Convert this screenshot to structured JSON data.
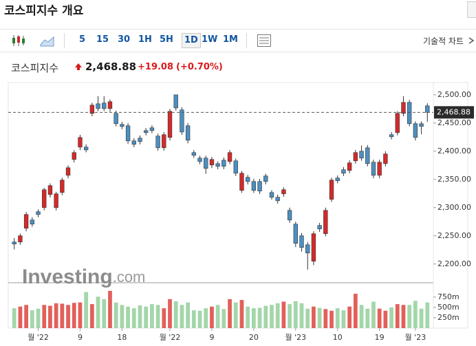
{
  "header": {
    "title": "코스피지수 개요"
  },
  "toolbar": {
    "intervals": [
      "5",
      "15",
      "30",
      "1H",
      "5H",
      "1D",
      "1W",
      "1M"
    ],
    "active_index": 5,
    "technical": "기술적 차트"
  },
  "quote": {
    "name": "코스피지수",
    "price": "2,468.88",
    "change": "+19.08",
    "change_pct": "(+0.70%)"
  },
  "chart_data": {
    "type": "candlestick",
    "open": [
      2239.0,
      2239.0,
      2263.4,
      2278.0,
      2292.7,
      2300.0,
      2323.2,
      2300.0,
      2326.8,
      2357.3,
      2385.4,
      2407.3,
      2407.3,
      2467.1,
      2484.1,
      2485.4,
      2475.6,
      2467.1,
      2447.6,
      2445.1,
      2418.3,
      2423.2,
      2436.6,
      2441.5,
      2426.8,
      2406.1,
      2424.4,
      2500.0,
      2473.2,
      2445.1,
      2397.6,
      2387.8,
      2387.8,
      2375.6,
      2378.0,
      2384.1,
      2381.7,
      2382.9,
      2330.5,
      2353.7,
      2346.3,
      2346.3,
      2356.1,
      2326.8,
      2318.3,
      2324.4,
      2295.1,
      2270.7,
      2250.0,
      2234.1,
      2204.9,
      2268.3,
      2253.7,
      2314.6,
      2352.4,
      2367.1,
      2365.9,
      2382.9,
      2400.0,
      2406.1,
      2380.5,
      2357.3,
      2378.0,
      2429.3,
      2432.9,
      2467.1,
      2486.6,
      2448.8,
      2448.8,
      2480.5
    ],
    "high": [
      2246.0,
      2254.0,
      2292.0,
      2283.0,
      2297.0,
      2335.0,
      2343.0,
      2328.0,
      2353.0,
      2375.0,
      2402.0,
      2429.0,
      2412.0,
      2486.0,
      2497.6,
      2497.6,
      2492.0,
      2472.0,
      2452.0,
      2450.0,
      2423.0,
      2428.0,
      2441.0,
      2446.0,
      2431.0,
      2434.0,
      2475.0,
      2500.0,
      2478.0,
      2450.0,
      2402.0,
      2392.0,
      2392.0,
      2390.0,
      2382.0,
      2389.0,
      2402.0,
      2387.0,
      2365.0,
      2358.0,
      2351.0,
      2351.0,
      2360.0,
      2331.0,
      2323.0,
      2336.0,
      2300.0,
      2275.0,
      2255.0,
      2239.0,
      2258.0,
      2273.0,
      2300.0,
      2353.0,
      2357.0,
      2372.0,
      2384.0,
      2402.0,
      2410.0,
      2411.0,
      2385.0,
      2385.0,
      2400.0,
      2434.0,
      2471.0,
      2497.6,
      2491.0,
      2453.0,
      2453.0,
      2485.0
    ],
    "low": [
      2226.0,
      2234.0,
      2258.0,
      2266.0,
      2283.0,
      2295.0,
      2318.0,
      2295.0,
      2322.0,
      2352.0,
      2380.0,
      2402.0,
      2398.0,
      2462.0,
      2471.0,
      2471.0,
      2470.0,
      2444.0,
      2439.0,
      2413.0,
      2407.0,
      2412.0,
      2428.0,
      2432.0,
      2401.0,
      2401.0,
      2419.0,
      2472.0,
      2429.0,
      2414.0,
      2388.0,
      2377.0,
      2360.0,
      2370.0,
      2368.0,
      2368.0,
      2377.0,
      2356.0,
      2326.0,
      2341.0,
      2326.0,
      2324.0,
      2341.0,
      2314.0,
      2307.0,
      2319.0,
      2273.0,
      2230.0,
      2222.0,
      2190.0,
      2198.0,
      2257.0,
      2249.0,
      2310.0,
      2343.0,
      2356.0,
      2361.0,
      2378.0,
      2383.0,
      2373.0,
      2352.0,
      2352.0,
      2373.0,
      2421.0,
      2428.0,
      2462.0,
      2444.0,
      2419.0,
      2430.0,
      2452.0
    ],
    "close": [
      2235.4,
      2250.0,
      2287.8,
      2270.7,
      2287.8,
      2331.7,
      2339.0,
      2324.4,
      2348.8,
      2370.7,
      2397.6,
      2424.4,
      2402.4,
      2481.7,
      2475.6,
      2475.6,
      2487.8,
      2448.8,
      2443.9,
      2418.3,
      2412.2,
      2417.1,
      2432.9,
      2436.6,
      2406.1,
      2429.3,
      2470.7,
      2476.8,
      2434.1,
      2419.5,
      2392.7,
      2381.7,
      2369.5,
      2385.4,
      2373.2,
      2373.2,
      2397.6,
      2361.0,
      2361.0,
      2346.3,
      2330.5,
      2329.3,
      2346.3,
      2318.3,
      2312.2,
      2331.7,
      2278.0,
      2236.6,
      2229.3,
      2219.5,
      2253.7,
      2262.2,
      2295.1,
      2348.8,
      2347.6,
      2361.0,
      2379.3,
      2397.6,
      2387.8,
      2378.0,
      2357.3,
      2380.5,
      2395.1,
      2425.6,
      2467.1,
      2486.6,
      2448.8,
      2424.4,
      2443.9,
      2468.88
    ],
    "up_color": "#d42a2a",
    "down_color": "#4d8fc0",
    "xlim": [
      -1,
      70
    ],
    "xticks": [
      {
        "value": 4,
        "label": "월 '22"
      },
      {
        "value": 11,
        "label": "9"
      },
      {
        "value": 18,
        "label": "18"
      },
      {
        "value": 26,
        "label": "월 '22"
      },
      {
        "value": 33,
        "label": "9"
      },
      {
        "value": 40,
        "label": "20"
      },
      {
        "value": 47,
        "label": "월 '23"
      },
      {
        "value": 54,
        "label": "10"
      },
      {
        "value": 61,
        "label": "19"
      },
      {
        "value": 67,
        "label": "월 '23"
      }
    ],
    "ylim": [
      2168,
      2512
    ],
    "yticks": [
      {
        "value": 2200,
        "label": "2,200.00"
      },
      {
        "value": 2250,
        "label": "2,250.00"
      },
      {
        "value": 2300,
        "label": "2,300.00"
      },
      {
        "value": 2350,
        "label": "2,350.00"
      },
      {
        "value": 2400,
        "label": "2,400.00"
      },
      {
        "value": 2450,
        "label": "2,450.00"
      },
      {
        "value": 2500,
        "label": "2,500.00"
      }
    ],
    "last_price": {
      "value": 2468.88,
      "label": "2,468.88"
    },
    "watermark": {
      "brand": "Investing",
      "suffix": ".com"
    },
    "volume": {
      "values": [
        480,
        520,
        560,
        430,
        470,
        560,
        540,
        600,
        590,
        560,
        610,
        620,
        870,
        580,
        760,
        700,
        900,
        620,
        560,
        520,
        480,
        550,
        520,
        580,
        560,
        480,
        700,
        650,
        560,
        620,
        430,
        420,
        480,
        520,
        560,
        460,
        700,
        620,
        680,
        520,
        480,
        490,
        540,
        560,
        600,
        640,
        580,
        650,
        600,
        470,
        520,
        490,
        460,
        420,
        480,
        430,
        520,
        830,
        560,
        470,
        640,
        470,
        420,
        500,
        580,
        560,
        560,
        660,
        470,
        620
      ],
      "up_color": "#e2605b",
      "down_color": "#a3d6a9",
      "ylim": [
        0,
        1080
      ],
      "yticks": [
        {
          "value": 250,
          "label": "250m"
        },
        {
          "value": 500,
          "label": "500m"
        },
        {
          "value": 750,
          "label": "750m"
        }
      ]
    }
  }
}
